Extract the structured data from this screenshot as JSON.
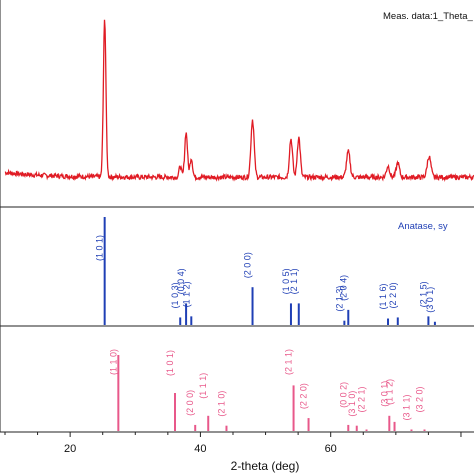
{
  "chart_data": {
    "type": "line",
    "xlabel": "2-theta (deg)",
    "xlim": [
      10,
      82
    ],
    "x_ticks": [
      20,
      40,
      60
    ],
    "legend_text": "Meas. data:1_Theta_",
    "reference_label": "Anatase, sy",
    "series_color": "#e01b24",
    "anatase_color": "#1f3fb5",
    "rutile_color": "#e8588a",
    "measured": {
      "name": "Meas. data:1_Theta_",
      "peaks": [
        {
          "x": 25.3,
          "y": 0.98,
          "w": 0.28
        },
        {
          "x": 36.9,
          "y": 0.07,
          "w": 0.25
        },
        {
          "x": 37.8,
          "y": 0.28,
          "w": 0.3
        },
        {
          "x": 38.6,
          "y": 0.12,
          "w": 0.28
        },
        {
          "x": 48.0,
          "y": 0.36,
          "w": 0.35
        },
        {
          "x": 53.9,
          "y": 0.24,
          "w": 0.33
        },
        {
          "x": 55.1,
          "y": 0.25,
          "w": 0.33
        },
        {
          "x": 62.7,
          "y": 0.16,
          "w": 0.38
        },
        {
          "x": 68.8,
          "y": 0.07,
          "w": 0.35
        },
        {
          "x": 70.3,
          "y": 0.09,
          "w": 0.35
        },
        {
          "x": 75.1,
          "y": 0.13,
          "w": 0.4
        }
      ]
    },
    "anatase": [
      {
        "x": 25.3,
        "i": 1.0,
        "hkl": "(1 0 1)"
      },
      {
        "x": 36.9,
        "i": 0.07,
        "hkl": "(1 0 3)"
      },
      {
        "x": 37.8,
        "i": 0.2,
        "hkl": "(0 0 4)"
      },
      {
        "x": 38.6,
        "i": 0.08,
        "hkl": "(1 1 2)"
      },
      {
        "x": 48.0,
        "i": 0.35,
        "hkl": "(2 0 0)"
      },
      {
        "x": 53.9,
        "i": 0.2,
        "hkl": "(1 0 5)"
      },
      {
        "x": 55.1,
        "i": 0.2,
        "hkl": "(2 1 1)"
      },
      {
        "x": 62.1,
        "i": 0.04,
        "hkl": "(2 1 3)"
      },
      {
        "x": 62.7,
        "i": 0.14,
        "hkl": "(2 0 4)"
      },
      {
        "x": 68.8,
        "i": 0.06,
        "hkl": "(1 1 6)"
      },
      {
        "x": 70.3,
        "i": 0.07,
        "hkl": "(2 2 0)"
      },
      {
        "x": 75.0,
        "i": 0.08,
        "hkl": "(2 1 5)"
      },
      {
        "x": 76.0,
        "i": 0.03,
        "hkl": "(3 0 1)"
      }
    ],
    "rutile": [
      {
        "x": 27.4,
        "i": 1.0,
        "hkl": "(1 1 0)"
      },
      {
        "x": 36.1,
        "i": 0.5,
        "hkl": "(1 0 1)"
      },
      {
        "x": 39.2,
        "i": 0.08,
        "hkl": "(2 0 0)"
      },
      {
        "x": 41.2,
        "i": 0.2,
        "hkl": "(1 1 1)"
      },
      {
        "x": 44.0,
        "i": 0.07,
        "hkl": "(2 1 0)"
      },
      {
        "x": 54.3,
        "i": 0.6,
        "hkl": "(2 1 1)"
      },
      {
        "x": 56.6,
        "i": 0.17,
        "hkl": "(2 2 0)"
      },
      {
        "x": 62.7,
        "i": 0.08,
        "hkl": "(0 0 2)"
      },
      {
        "x": 64.0,
        "i": 0.07,
        "hkl": "(3 1 0)"
      },
      {
        "x": 65.5,
        "i": 0.02,
        "hkl": "(2 2 1)"
      },
      {
        "x": 69.0,
        "i": 0.2,
        "hkl": "(3 0 1)"
      },
      {
        "x": 69.8,
        "i": 0.12,
        "hkl": "(1 1 2)"
      },
      {
        "x": 72.4,
        "i": 0.02,
        "hkl": "(3 1 1)"
      },
      {
        "x": 74.4,
        "i": 0.02,
        "hkl": "(3 2 0)"
      }
    ]
  }
}
